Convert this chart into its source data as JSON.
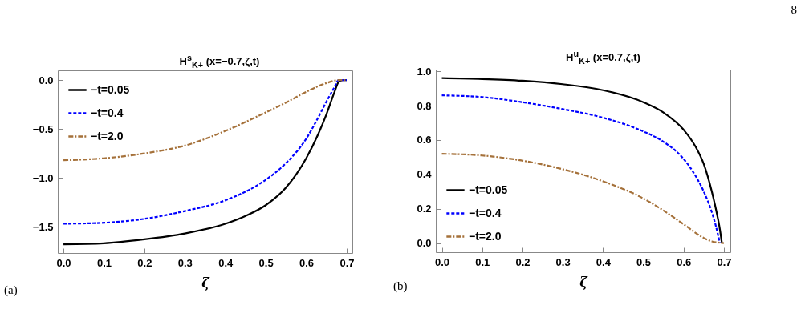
{
  "chart_data": [
    {
      "type": "line",
      "title": "H$^{s}$$_{K+}$ (x=−0.7,ζ,t)",
      "xlabel": "ζ",
      "annotations": [
        "(a)"
      ],
      "xlim": [
        -0.014,
        0.714
      ],
      "ylim": [
        -1.77,
        0.1
      ],
      "xticks": [
        {
          "value": 0,
          "label": "0.0"
        },
        0.1,
        0.2,
        0.3,
        0.4,
        0.5,
        0.6,
        0.7
      ],
      "yticks": [
        {
          "value": 0,
          "label": "0.0"
        },
        -0.5,
        {
          "value": -1,
          "label": "−1.0"
        },
        -1.5
      ],
      "grid": false,
      "legend": "top left",
      "series": [
        {
          "name": "−t=0.05",
          "color": "#000000",
          "line_style": "solid",
          "x": [
            0,
            0.1,
            0.2,
            0.3,
            0.4,
            0.45,
            0.5,
            0.55,
            0.6,
            0.63,
            0.65,
            0.67,
            0.68,
            0.69,
            0.7
          ],
          "values": [
            -1.68,
            -1.67,
            -1.63,
            -1.57,
            -1.47,
            -1.39,
            -1.28,
            -1.1,
            -0.8,
            -0.55,
            -0.35,
            -0.12,
            -0.02,
            0,
            0
          ]
        },
        {
          "name": "−t=0.4",
          "color": "#0000ff",
          "line_style": "dashed",
          "x": [
            0,
            0.1,
            0.2,
            0.3,
            0.4,
            0.5,
            0.55,
            0.6,
            0.63,
            0.65,
            0.67,
            0.68,
            0.7
          ],
          "values": [
            -1.47,
            -1.46,
            -1.42,
            -1.34,
            -1.23,
            -1.02,
            -0.85,
            -0.6,
            -0.38,
            -0.22,
            -0.07,
            0,
            0
          ]
        },
        {
          "name": "−t=2.0",
          "color": "#a5713a",
          "line_style": "dotted",
          "x": [
            0,
            0.1,
            0.2,
            0.3,
            0.4,
            0.5,
            0.55,
            0.6,
            0.65,
            0.68,
            0.7
          ],
          "values": [
            -0.82,
            -0.8,
            -0.75,
            -0.67,
            -0.52,
            -0.33,
            -0.23,
            -0.12,
            -0.03,
            0,
            0
          ]
        }
      ]
    },
    {
      "type": "line",
      "title": "H$^{u}$$_{K+}$ (x=0.7,ζ,t)",
      "xlabel": "ζ",
      "annotations": [
        "(b)",
        "8"
      ],
      "xlim": [
        -0.015,
        0.716
      ],
      "ylim": [
        -0.053,
        1.01
      ],
      "xticks": [
        {
          "value": 0,
          "label": "0.0"
        },
        0.1,
        0.2,
        0.3,
        0.4,
        0.5,
        0.6,
        0.7
      ],
      "yticks": [
        {
          "value": 0,
          "label": "0.0"
        },
        0.2,
        0.4,
        0.6,
        0.8,
        {
          "value": 1,
          "label": "1.0"
        }
      ],
      "grid": false,
      "legend": "bottom left",
      "series": [
        {
          "name": "−t=0.05",
          "color": "#000000",
          "line_style": "solid",
          "x": [
            0,
            0.1,
            0.2,
            0.3,
            0.4,
            0.5,
            0.55,
            0.6,
            0.63,
            0.65,
            0.67,
            0.68,
            0.69,
            0.695
          ],
          "values": [
            0.96,
            0.955,
            0.945,
            0.925,
            0.89,
            0.82,
            0.76,
            0.66,
            0.56,
            0.46,
            0.3,
            0.2,
            0.08,
            0
          ]
        },
        {
          "name": "−t=0.4",
          "color": "#0000ff",
          "line_style": "dashed",
          "x": [
            0,
            0.1,
            0.2,
            0.3,
            0.4,
            0.5,
            0.55,
            0.6,
            0.63,
            0.65,
            0.67,
            0.68,
            0.69
          ],
          "values": [
            0.86,
            0.85,
            0.82,
            0.78,
            0.73,
            0.65,
            0.59,
            0.49,
            0.39,
            0.3,
            0.18,
            0.1,
            0
          ]
        },
        {
          "name": "−t=2.0",
          "color": "#a5713a",
          "line_style": "dotted",
          "x": [
            0,
            0.1,
            0.2,
            0.3,
            0.4,
            0.5,
            0.55,
            0.6,
            0.65,
            0.67,
            0.7
          ],
          "values": [
            0.52,
            0.51,
            0.48,
            0.43,
            0.36,
            0.26,
            0.19,
            0.11,
            0.03,
            0.01,
            0
          ]
        }
      ]
    }
  ]
}
